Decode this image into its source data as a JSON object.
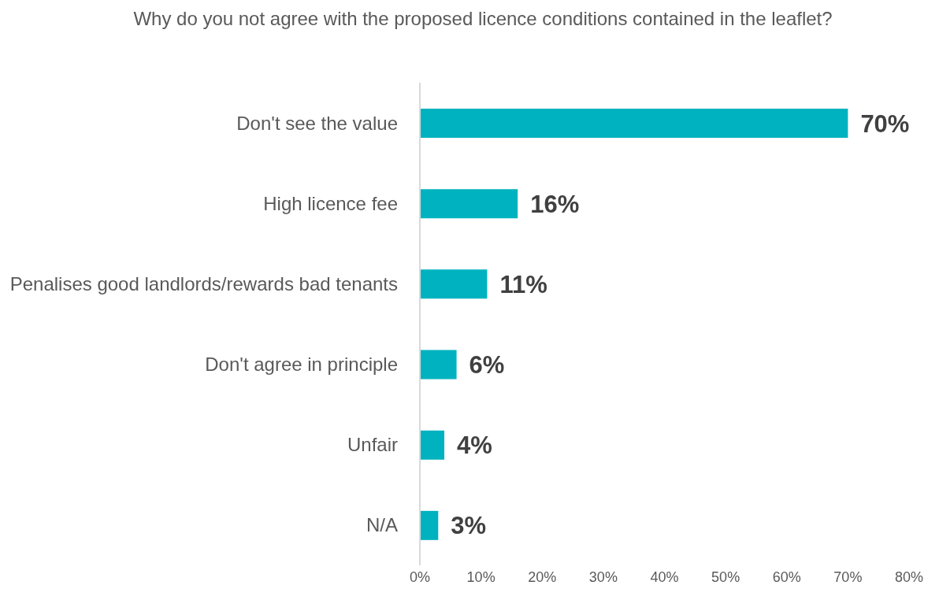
{
  "chart_data": {
    "type": "bar",
    "orientation": "horizontal",
    "title": "Why do you not agree with the proposed licence conditions contained in the leaflet?",
    "categories": [
      "Don't see the value",
      "High licence fee",
      "Penalises good landlords/rewards bad tenants",
      "Don't agree in principle",
      "Unfair",
      "N/A"
    ],
    "values": [
      70,
      16,
      11,
      6,
      4,
      3
    ],
    "value_labels": [
      "70%",
      "16%",
      "11%",
      "6%",
      "4%",
      "3%"
    ],
    "color": "#00b2bf",
    "xlim": [
      0,
      80
    ],
    "xticks": [
      {
        "value": 0,
        "label": "0%"
      },
      {
        "value": 10,
        "label": "10%"
      },
      {
        "value": 20,
        "label": "20%"
      },
      {
        "value": 30,
        "label": "30%"
      },
      {
        "value": 40,
        "label": "40%"
      },
      {
        "value": 50,
        "label": "50%"
      },
      {
        "value": 60,
        "label": "60%"
      },
      {
        "value": 70,
        "label": "70%"
      },
      {
        "value": 80,
        "label": "80%"
      }
    ],
    "grid": false,
    "legend": false
  }
}
